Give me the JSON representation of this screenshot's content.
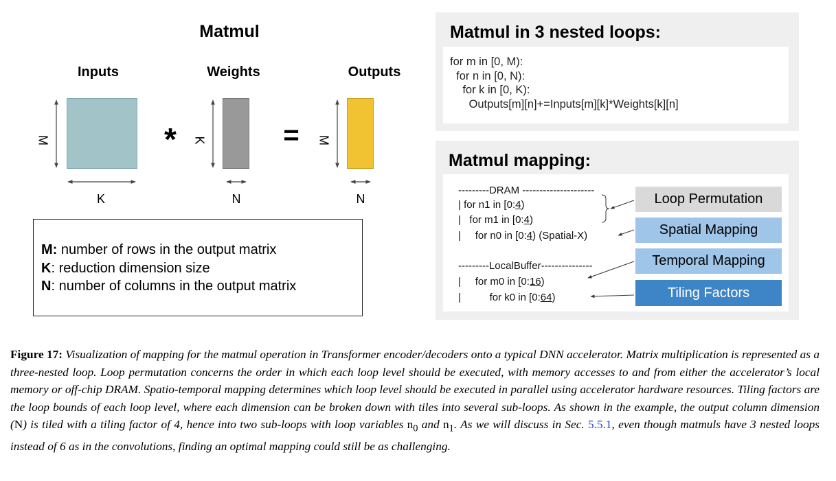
{
  "left": {
    "title": "Matmul",
    "inputs_label": "Inputs",
    "weights_label": "Weights",
    "outputs_label": "Outputs",
    "op_multiply": "*",
    "op_equals": "=",
    "dim_m_inputs": "M",
    "dim_k_inputs": "K",
    "dim_k_weights": "K",
    "dim_n_weights": "N",
    "dim_m_outputs": "M",
    "dim_n_outputs": "N",
    "colors": {
      "inputs": "#a2c4c9",
      "weights": "#999999",
      "outputs": "#f1c232"
    },
    "legend": [
      {
        "key": "M:",
        "text": " number of rows in the output matrix"
      },
      {
        "key": "K",
        "text": ": reduction dimension size"
      },
      {
        "key": "N",
        "text": ": number of columns in the output matrix"
      }
    ]
  },
  "loops": {
    "title": "Matmul in 3 nested loops:",
    "lines": [
      "for m in [0, M):",
      "  for n in [0, N):",
      "    for k in [0, K):",
      "      Outputs[m][n]+=Inputs[m][k]*Weights[k][n]"
    ]
  },
  "mapping": {
    "title": "Matmul mapping:",
    "dram_header": "---------DRAM ---------------------",
    "l1_pre": "| for n1 in [0:",
    "l1_num": "4",
    "l1_post": ")",
    "l2_pre": "|   for m1 in [0:",
    "l2_num": "4",
    "l2_post": ")",
    "l3_pre": "|     for n0 in [0:",
    "l3_num": "4",
    "l3_post": ") (Spatial-X)",
    "lb_header": "---------LocalBuffer---------------",
    "l4_pre": "|     for m0 in [0:",
    "l4_num": "16",
    "l4_post": ")",
    "l5_pre": "|          for k0 in [0:",
    "l5_num": "64",
    "l5_post": ")",
    "tags": {
      "loop_permutation": "Loop Permutation",
      "spatial_mapping": "Spatial Mapping",
      "temporal_mapping": "Temporal Mapping",
      "tiling_factors": "Tiling Factors"
    },
    "tag_colors": {
      "loop_permutation": "#d9d9d9",
      "spatial_mapping": "#9fc5e8",
      "temporal_mapping": "#9fc5e8",
      "tiling_factors": "#3d85c6"
    }
  },
  "caption": {
    "label": "Figure 17:",
    "text_1": " Visualization of mapping for the matmul operation in Transformer encoder/decoders onto a typical DNN accelerator. Matrix multiplication is represented as a three-nested loop. Loop permutation concerns the order in which each loop level should be executed, with memory accesses to and from either the accelerator’s local memory or off-chip DRAM. Spatio-temporal mapping determines which loop level should be executed in parallel using accelerator hardware resources. Tiling factors are the loop bounds of each loop level, where each dimension can be broken down with tiles into several sub-loops. As shown in the example, the output column dimension (",
    "n_sym": "N",
    "text_2": ") is tiled with a tiling factor of 4, hence into two sub-loops with loop variables ",
    "n0": "n",
    "n0_sub": "0",
    "and": " and ",
    "n1": "n",
    "n1_sub": "1",
    "text_3": ". As we will discuss in Sec. ",
    "sec_ref": "5.5.1",
    "text_4": ", even though matmuls have 3 nested loops instead of 6 as in the convolutions, finding an optimal mapping could still be as challenging."
  }
}
